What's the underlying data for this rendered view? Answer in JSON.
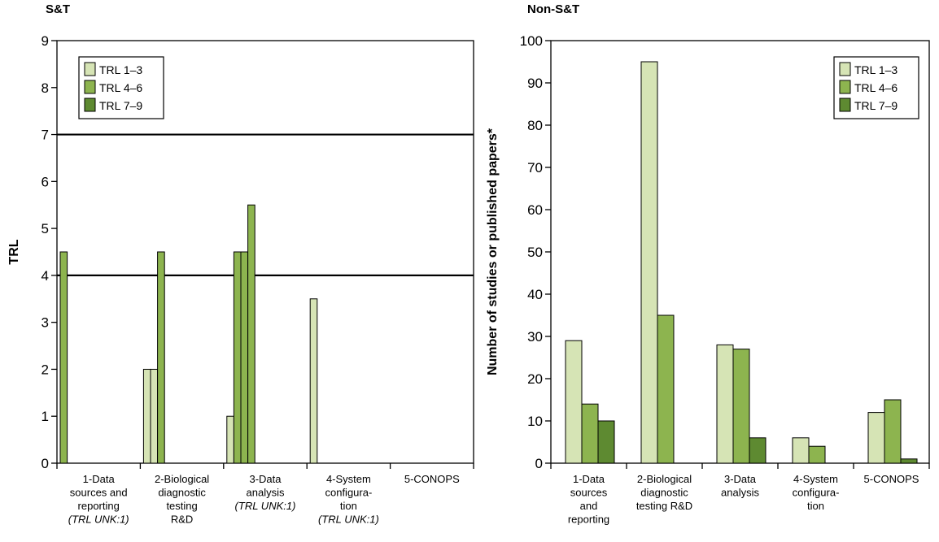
{
  "colors": {
    "trl13": "#d6e4b5",
    "trl46": "#8db44f",
    "trl79": "#5e8a31"
  },
  "chart_data": [
    {
      "type": "bar",
      "title": "S&T",
      "ylabel": "TRL",
      "ylim": [
        0,
        9
      ],
      "yticks": [
        0,
        1,
        2,
        3,
        4,
        5,
        6,
        7,
        8,
        9
      ],
      "grid": false,
      "reference_lines": [
        4,
        7
      ],
      "legend_position": "top-left",
      "legend": [
        "TRL 1–3",
        "TRL 4–6",
        "TRL 7–9"
      ],
      "categories": [
        {
          "lines": [
            "1-Data",
            "sources and",
            "reporting"
          ],
          "note": "(TRL UNK:1)"
        },
        {
          "lines": [
            "2-Biological",
            "diagnostic",
            "testing",
            "R&D"
          ],
          "note": ""
        },
        {
          "lines": [
            "3-Data",
            "analysis"
          ],
          "note": "(TRL UNK:1)"
        },
        {
          "lines": [
            "4-System",
            "configura-",
            "tion"
          ],
          "note": "(TRL UNK:1)"
        },
        {
          "lines": [
            "5-CONOPS"
          ],
          "note": ""
        }
      ],
      "bars": [
        {
          "category": 0,
          "group": "TRL 4–6",
          "value": 4.5
        },
        {
          "category": 1,
          "group": "TRL 1–3",
          "value": 2
        },
        {
          "category": 1,
          "group": "TRL 1–3",
          "value": 2
        },
        {
          "category": 1,
          "group": "TRL 4–6",
          "value": 4.5
        },
        {
          "category": 2,
          "group": "TRL 1–3",
          "value": 1
        },
        {
          "category": 2,
          "group": "TRL 4–6",
          "value": 4.5
        },
        {
          "category": 2,
          "group": "TRL 4–6",
          "value": 4.5
        },
        {
          "category": 2,
          "group": "TRL 4–6",
          "value": 5.5
        },
        {
          "category": 3,
          "group": "TRL 1–3",
          "value": 3.5
        }
      ]
    },
    {
      "type": "bar",
      "title": "Non-S&T",
      "ylabel": "Number of studies or published papers*",
      "ylim": [
        0,
        100
      ],
      "yticks": [
        0,
        10,
        20,
        30,
        40,
        50,
        60,
        70,
        80,
        90,
        100
      ],
      "grid": false,
      "legend_position": "top-right",
      "categories": [
        {
          "lines": [
            "1-Data",
            "sources",
            "and",
            "reporting"
          ]
        },
        {
          "lines": [
            "2-Biological",
            "diagnostic",
            "testing R&D"
          ]
        },
        {
          "lines": [
            "3-Data",
            "analysis"
          ]
        },
        {
          "lines": [
            "4-System",
            "configura-",
            "tion"
          ]
        },
        {
          "lines": [
            "5-CONOPS"
          ]
        }
      ],
      "series": [
        {
          "name": "TRL 1–3",
          "values": [
            29,
            95,
            28,
            6,
            12
          ]
        },
        {
          "name": "TRL 4–6",
          "values": [
            14,
            35,
            27,
            4,
            15
          ]
        },
        {
          "name": "TRL 7–9",
          "values": [
            10,
            0,
            6,
            0,
            1
          ]
        }
      ]
    }
  ]
}
